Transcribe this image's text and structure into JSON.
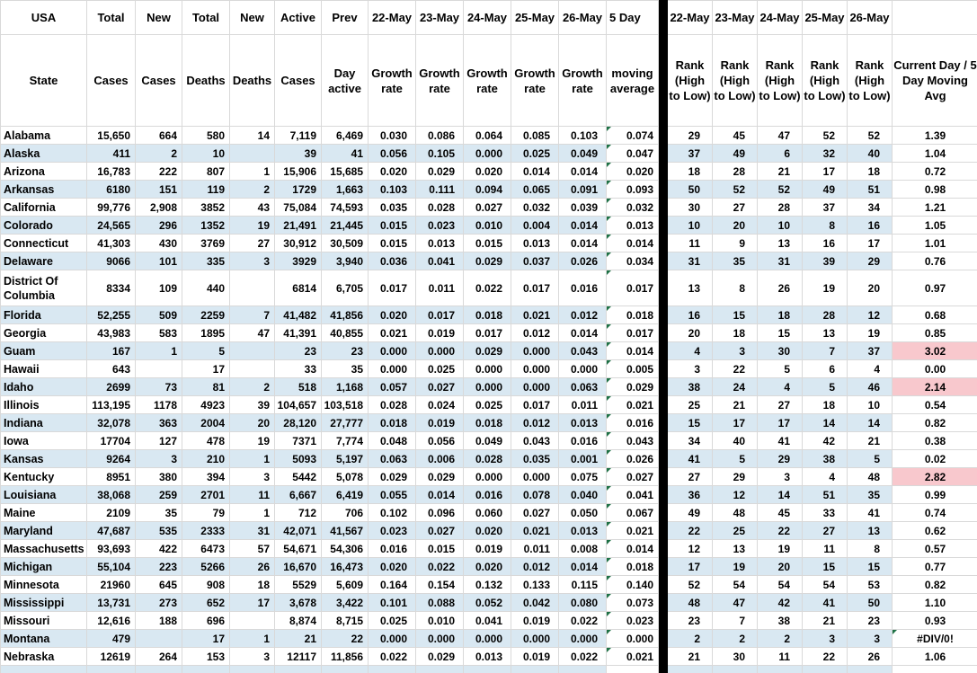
{
  "colors": {
    "stripe": "#D9E8F2",
    "highlight": "#F8C8CD",
    "divider": "#000000",
    "gridline": "#D9D9D9",
    "error_indicator": "#1E7145"
  },
  "header": {
    "row1": [
      "USA",
      "Total",
      "New",
      "Total",
      "New",
      "Active",
      "Prev",
      "22-May",
      "23-May",
      "24-May",
      "25-May",
      "26-May",
      "5 Day",
      "",
      "22-May",
      "23-May",
      "24-May",
      "25-May",
      "26-May",
      ""
    ],
    "row2": [
      "State",
      "Cases",
      "Cases",
      "Deaths",
      "Deaths",
      "Cases",
      "Day active",
      "Growth rate",
      "Growth rate",
      "Growth rate",
      "Growth rate",
      "Growth rate",
      "moving average",
      "",
      "Rank (High to Low)",
      "Rank (High to Low)",
      "Rank (High to Low)",
      "Rank (High to Low)",
      "Rank (High to Low)",
      "Current Day / 5 Day Moving Avg"
    ]
  },
  "rows": [
    {
      "state": "Alabama",
      "total_cases": "15,650",
      "new_cases": "664",
      "total_deaths": "580",
      "new_deaths": "14",
      "active_cases": "7,119",
      "prev_day_active": "6,469",
      "growth_rates": [
        "0.030",
        "0.086",
        "0.064",
        "0.085",
        "0.103"
      ],
      "moving_average": "0.074",
      "ranks": [
        "29",
        "45",
        "47",
        "52",
        "52"
      ],
      "current_ratio": "1.39"
    },
    {
      "state": "Alaska",
      "total_cases": "411",
      "new_cases": "2",
      "total_deaths": "10",
      "new_deaths": "",
      "active_cases": "39",
      "prev_day_active": "41",
      "growth_rates": [
        "0.056",
        "0.105",
        "0.000",
        "0.025",
        "0.049"
      ],
      "moving_average": "0.047",
      "ranks": [
        "37",
        "49",
        "6",
        "32",
        "40"
      ],
      "current_ratio": "1.04"
    },
    {
      "state": "Arizona",
      "total_cases": "16,783",
      "new_cases": "222",
      "total_deaths": "807",
      "new_deaths": "1",
      "active_cases": "15,906",
      "prev_day_active": "15,685",
      "growth_rates": [
        "0.020",
        "0.029",
        "0.020",
        "0.014",
        "0.014"
      ],
      "moving_average": "0.020",
      "ranks": [
        "18",
        "28",
        "21",
        "17",
        "18"
      ],
      "current_ratio": "0.72"
    },
    {
      "state": "Arkansas",
      "total_cases": "6180",
      "new_cases": "151",
      "total_deaths": "119",
      "new_deaths": "2",
      "active_cases": "1729",
      "prev_day_active": "1,663",
      "growth_rates": [
        "0.103",
        "0.111",
        "0.094",
        "0.065",
        "0.091"
      ],
      "moving_average": "0.093",
      "ranks": [
        "50",
        "52",
        "52",
        "49",
        "51"
      ],
      "current_ratio": "0.98"
    },
    {
      "state": "California",
      "total_cases": "99,776",
      "new_cases": "2,908",
      "total_deaths": "3852",
      "new_deaths": "43",
      "active_cases": "75,084",
      "prev_day_active": "74,593",
      "growth_rates": [
        "0.035",
        "0.028",
        "0.027",
        "0.032",
        "0.039"
      ],
      "moving_average": "0.032",
      "ranks": [
        "30",
        "27",
        "28",
        "37",
        "34"
      ],
      "current_ratio": "1.21"
    },
    {
      "state": "Colorado",
      "total_cases": "24,565",
      "new_cases": "296",
      "total_deaths": "1352",
      "new_deaths": "19",
      "active_cases": "21,491",
      "prev_day_active": "21,445",
      "growth_rates": [
        "0.015",
        "0.023",
        "0.010",
        "0.004",
        "0.014"
      ],
      "moving_average": "0.013",
      "ranks": [
        "10",
        "20",
        "10",
        "8",
        "16"
      ],
      "current_ratio": "1.05"
    },
    {
      "state": "Connecticut",
      "total_cases": "41,303",
      "new_cases": "430",
      "total_deaths": "3769",
      "new_deaths": "27",
      "active_cases": "30,912",
      "prev_day_active": "30,509",
      "growth_rates": [
        "0.015",
        "0.013",
        "0.015",
        "0.013",
        "0.014"
      ],
      "moving_average": "0.014",
      "ranks": [
        "11",
        "9",
        "13",
        "16",
        "17"
      ],
      "current_ratio": "1.01"
    },
    {
      "state": "Delaware",
      "total_cases": "9066",
      "new_cases": "101",
      "total_deaths": "335",
      "new_deaths": "3",
      "active_cases": "3929",
      "prev_day_active": "3,940",
      "growth_rates": [
        "0.036",
        "0.041",
        "0.029",
        "0.037",
        "0.026"
      ],
      "moving_average": "0.034",
      "ranks": [
        "31",
        "35",
        "31",
        "39",
        "29"
      ],
      "current_ratio": "0.76"
    },
    {
      "state": "District Of Columbia",
      "tall": true,
      "total_cases": "8334",
      "new_cases": "109",
      "total_deaths": "440",
      "new_deaths": "",
      "active_cases": "6814",
      "prev_day_active": "6,705",
      "growth_rates": [
        "0.017",
        "0.011",
        "0.022",
        "0.017",
        "0.016"
      ],
      "moving_average": "0.017",
      "ranks": [
        "13",
        "8",
        "26",
        "19",
        "20"
      ],
      "current_ratio": "0.97"
    },
    {
      "state": "Florida",
      "total_cases": "52,255",
      "new_cases": "509",
      "total_deaths": "2259",
      "new_deaths": "7",
      "active_cases": "41,482",
      "prev_day_active": "41,856",
      "growth_rates": [
        "0.020",
        "0.017",
        "0.018",
        "0.021",
        "0.012"
      ],
      "moving_average": "0.018",
      "ranks": [
        "16",
        "15",
        "18",
        "28",
        "12"
      ],
      "current_ratio": "0.68"
    },
    {
      "state": "Georgia",
      "total_cases": "43,983",
      "new_cases": "583",
      "total_deaths": "1895",
      "new_deaths": "47",
      "active_cases": "41,391",
      "prev_day_active": "40,855",
      "growth_rates": [
        "0.021",
        "0.019",
        "0.017",
        "0.012",
        "0.014"
      ],
      "moving_average": "0.017",
      "ranks": [
        "20",
        "18",
        "15",
        "13",
        "19"
      ],
      "current_ratio": "0.85"
    },
    {
      "state": "Guam",
      "total_cases": "167",
      "new_cases": "1",
      "total_deaths": "5",
      "new_deaths": "",
      "active_cases": "23",
      "prev_day_active": "23",
      "growth_rates": [
        "0.000",
        "0.000",
        "0.029",
        "0.000",
        "0.043"
      ],
      "moving_average": "0.014",
      "ranks": [
        "4",
        "3",
        "30",
        "7",
        "37"
      ],
      "current_ratio": "3.02",
      "highlight_current": true
    },
    {
      "state": "Hawaii",
      "total_cases": "643",
      "new_cases": "",
      "total_deaths": "17",
      "new_deaths": "",
      "active_cases": "33",
      "prev_day_active": "35",
      "growth_rates": [
        "0.000",
        "0.025",
        "0.000",
        "0.000",
        "0.000"
      ],
      "moving_average": "0.005",
      "ranks": [
        "3",
        "22",
        "5",
        "6",
        "4"
      ],
      "current_ratio": "0.00"
    },
    {
      "state": "Idaho",
      "total_cases": "2699",
      "new_cases": "73",
      "total_deaths": "81",
      "new_deaths": "2",
      "active_cases": "518",
      "prev_day_active": "1,168",
      "growth_rates": [
        "0.057",
        "0.027",
        "0.000",
        "0.000",
        "0.063"
      ],
      "moving_average": "0.029",
      "ranks": [
        "38",
        "24",
        "4",
        "5",
        "46"
      ],
      "current_ratio": "2.14",
      "highlight_current": true
    },
    {
      "state": "Illinois",
      "total_cases": "113,195",
      "new_cases": "1178",
      "total_deaths": "4923",
      "new_deaths": "39",
      "active_cases": "104,657",
      "prev_day_active": "103,518",
      "growth_rates": [
        "0.028",
        "0.024",
        "0.025",
        "0.017",
        "0.011"
      ],
      "moving_average": "0.021",
      "ranks": [
        "25",
        "21",
        "27",
        "18",
        "10"
      ],
      "current_ratio": "0.54"
    },
    {
      "state": "Indiana",
      "total_cases": "32,078",
      "new_cases": "363",
      "total_deaths": "2004",
      "new_deaths": "20",
      "active_cases": "28,120",
      "prev_day_active": "27,777",
      "growth_rates": [
        "0.018",
        "0.019",
        "0.018",
        "0.012",
        "0.013"
      ],
      "moving_average": "0.016",
      "ranks": [
        "15",
        "17",
        "17",
        "14",
        "14"
      ],
      "current_ratio": "0.82"
    },
    {
      "state": "Iowa",
      "total_cases": "17704",
      "new_cases": "127",
      "total_deaths": "478",
      "new_deaths": "19",
      "active_cases": "7371",
      "prev_day_active": "7,774",
      "growth_rates": [
        "0.048",
        "0.056",
        "0.049",
        "0.043",
        "0.016"
      ],
      "moving_average": "0.043",
      "ranks": [
        "34",
        "40",
        "41",
        "42",
        "21"
      ],
      "current_ratio": "0.38"
    },
    {
      "state": "Kansas",
      "total_cases": "9264",
      "new_cases": "3",
      "total_deaths": "210",
      "new_deaths": "1",
      "active_cases": "5093",
      "prev_day_active": "5,197",
      "growth_rates": [
        "0.063",
        "0.006",
        "0.028",
        "0.035",
        "0.001"
      ],
      "moving_average": "0.026",
      "ranks": [
        "41",
        "5",
        "29",
        "38",
        "5"
      ],
      "current_ratio": "0.02"
    },
    {
      "state": "Kentucky",
      "total_cases": "8951",
      "new_cases": "380",
      "total_deaths": "394",
      "new_deaths": "3",
      "active_cases": "5442",
      "prev_day_active": "5,078",
      "growth_rates": [
        "0.029",
        "0.029",
        "0.000",
        "0.000",
        "0.075"
      ],
      "moving_average": "0.027",
      "ranks": [
        "27",
        "29",
        "3",
        "4",
        "48"
      ],
      "current_ratio": "2.82",
      "highlight_current": true
    },
    {
      "state": "Louisiana",
      "total_cases": "38,068",
      "new_cases": "259",
      "total_deaths": "2701",
      "new_deaths": "11",
      "active_cases": "6,667",
      "prev_day_active": "6,419",
      "growth_rates": [
        "0.055",
        "0.014",
        "0.016",
        "0.078",
        "0.040"
      ],
      "moving_average": "0.041",
      "ranks": [
        "36",
        "12",
        "14",
        "51",
        "35"
      ],
      "current_ratio": "0.99"
    },
    {
      "state": "Maine",
      "total_cases": "2109",
      "new_cases": "35",
      "total_deaths": "79",
      "new_deaths": "1",
      "active_cases": "712",
      "prev_day_active": "706",
      "growth_rates": [
        "0.102",
        "0.096",
        "0.060",
        "0.027",
        "0.050"
      ],
      "moving_average": "0.067",
      "ranks": [
        "49",
        "48",
        "45",
        "33",
        "41"
      ],
      "current_ratio": "0.74"
    },
    {
      "state": "Maryland",
      "total_cases": "47,687",
      "new_cases": "535",
      "total_deaths": "2333",
      "new_deaths": "31",
      "active_cases": "42,071",
      "prev_day_active": "41,567",
      "growth_rates": [
        "0.023",
        "0.027",
        "0.020",
        "0.021",
        "0.013"
      ],
      "moving_average": "0.021",
      "ranks": [
        "22",
        "25",
        "22",
        "27",
        "13"
      ],
      "current_ratio": "0.62"
    },
    {
      "state": "Massachusetts",
      "total_cases": "93,693",
      "new_cases": "422",
      "total_deaths": "6473",
      "new_deaths": "57",
      "active_cases": "54,671",
      "prev_day_active": "54,306",
      "growth_rates": [
        "0.016",
        "0.015",
        "0.019",
        "0.011",
        "0.008"
      ],
      "moving_average": "0.014",
      "ranks": [
        "12",
        "13",
        "19",
        "11",
        "8"
      ],
      "current_ratio": "0.57"
    },
    {
      "state": "Michigan",
      "total_cases": "55,104",
      "new_cases": "223",
      "total_deaths": "5266",
      "new_deaths": "26",
      "active_cases": "16,670",
      "prev_day_active": "16,473",
      "growth_rates": [
        "0.020",
        "0.022",
        "0.020",
        "0.012",
        "0.014"
      ],
      "moving_average": "0.018",
      "ranks": [
        "17",
        "19",
        "20",
        "15",
        "15"
      ],
      "current_ratio": "0.77"
    },
    {
      "state": "Minnesota",
      "total_cases": "21960",
      "new_cases": "645",
      "total_deaths": "908",
      "new_deaths": "18",
      "active_cases": "5529",
      "prev_day_active": "5,609",
      "growth_rates": [
        "0.164",
        "0.154",
        "0.132",
        "0.133",
        "0.115"
      ],
      "moving_average": "0.140",
      "ranks": [
        "52",
        "54",
        "54",
        "54",
        "53"
      ],
      "current_ratio": "0.82"
    },
    {
      "state": "Mississippi",
      "total_cases": "13,731",
      "new_cases": "273",
      "total_deaths": "652",
      "new_deaths": "17",
      "active_cases": "3,678",
      "prev_day_active": "3,422",
      "growth_rates": [
        "0.101",
        "0.088",
        "0.052",
        "0.042",
        "0.080"
      ],
      "moving_average": "0.073",
      "ranks": [
        "48",
        "47",
        "42",
        "41",
        "50"
      ],
      "current_ratio": "1.10"
    },
    {
      "state": "Missouri",
      "total_cases": "12,616",
      "new_cases": "188",
      "total_deaths": "696",
      "new_deaths": "",
      "active_cases": "8,874",
      "prev_day_active": "8,715",
      "growth_rates": [
        "0.025",
        "0.010",
        "0.041",
        "0.019",
        "0.022"
      ],
      "moving_average": "0.023",
      "ranks": [
        "23",
        "7",
        "38",
        "21",
        "23"
      ],
      "current_ratio": "0.93"
    },
    {
      "state": "Montana",
      "total_cases": "479",
      "new_cases": "",
      "total_deaths": "17",
      "new_deaths": "1",
      "active_cases": "21",
      "prev_day_active": "22",
      "growth_rates": [
        "0.000",
        "0.000",
        "0.000",
        "0.000",
        "0.000"
      ],
      "moving_average": "0.000",
      "ranks": [
        "2",
        "2",
        "2",
        "3",
        "3"
      ],
      "current_ratio": "#DIV/0!",
      "current_error": true
    },
    {
      "state": "Nebraska",
      "total_cases": "12619",
      "new_cases": "264",
      "total_deaths": "153",
      "new_deaths": "3",
      "active_cases": "12117",
      "prev_day_active": "11,856",
      "growth_rates": [
        "0.022",
        "0.029",
        "0.013",
        "0.019",
        "0.022"
      ],
      "moving_average": "0.021",
      "ranks": [
        "21",
        "30",
        "11",
        "22",
        "26"
      ],
      "current_ratio": "1.06"
    }
  ]
}
